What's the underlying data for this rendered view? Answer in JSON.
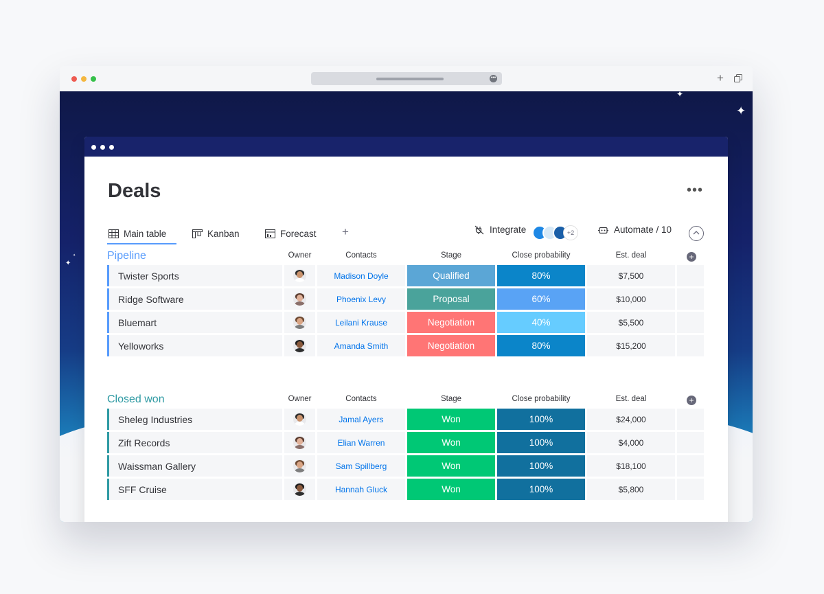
{
  "board": {
    "title": "Deals",
    "more_label": "•••"
  },
  "tabs": [
    {
      "label": "Main table",
      "icon": "table-icon"
    },
    {
      "label": "Kanban",
      "icon": "kanban-icon"
    },
    {
      "label": "Forecast",
      "icon": "forecast-icon"
    }
  ],
  "add_view_label": "+",
  "toolbar": {
    "integrate_label": "Integrate",
    "integrate_extra": "+2",
    "automate_label": "Automate / 10"
  },
  "columns": {
    "owner": "Owner",
    "contacts": "Contacts",
    "stage": "Stage",
    "probability": "Close probability",
    "deal": "Est. deal"
  },
  "groups": [
    {
      "title": "Pipeline",
      "color": "#579bfc",
      "rows": [
        {
          "name": "Twister Sports",
          "contact": "Madison Doyle",
          "stage": "Qualified",
          "stage_color": "#5ba6d6",
          "prob": "80%",
          "prob_color": "#0b85c9",
          "deal": "$7,500",
          "avatar": {
            "skin": "#c9926c",
            "hair": "#2b2b2b",
            "shirt": "#ffffff"
          }
        },
        {
          "name": "Ridge Software",
          "contact": "Phoenix Levy",
          "stage": "Proposal",
          "stage_color": "#4aa39b",
          "prob": "60%",
          "prob_color": "#59a3f5",
          "deal": "$10,000",
          "avatar": {
            "skin": "#e0b199",
            "hair": "#5a3b2e",
            "shirt": "#8a6f6a"
          }
        },
        {
          "name": "Bluemart",
          "contact": "Leilani Krause",
          "stage": "Negotiation",
          "stage_color": "#ff7575",
          "prob": "40%",
          "prob_color": "#66ccff",
          "deal": "$5,500",
          "avatar": {
            "skin": "#d9a585",
            "hair": "#6e4a32",
            "shirt": "#7d7d7d"
          }
        },
        {
          "name": "Yelloworks",
          "contact": "Amanda Smith",
          "stage": "Negotiation",
          "stage_color": "#ff7575",
          "prob": "80%",
          "prob_color": "#0b85c9",
          "deal": "$15,200",
          "avatar": {
            "skin": "#8a5a3d",
            "hair": "#1e1e1e",
            "shirt": "#2e2e2e"
          }
        }
      ]
    },
    {
      "title": "Closed won",
      "color": "#2f9aa3",
      "rows": [
        {
          "name": "Sheleg Industries",
          "contact": "Jamal Ayers",
          "stage": "Won",
          "stage_color": "#00c875",
          "prob": "100%",
          "prob_color": "#11709e",
          "deal": "$24,000",
          "avatar": {
            "skin": "#c9926c",
            "hair": "#2b2b2b",
            "shirt": "#ffffff"
          }
        },
        {
          "name": "Zift Records",
          "contact": "Elian Warren",
          "stage": "Won",
          "stage_color": "#00c875",
          "prob": "100%",
          "prob_color": "#11709e",
          "deal": "$4,000",
          "avatar": {
            "skin": "#e0b199",
            "hair": "#5a3b2e",
            "shirt": "#8a6f6a"
          }
        },
        {
          "name": "Waissman Gallery",
          "contact": "Sam Spillberg",
          "stage": "Won",
          "stage_color": "#00c875",
          "prob": "100%",
          "prob_color": "#11709e",
          "deal": "$18,100",
          "avatar": {
            "skin": "#d9a585",
            "hair": "#6e4a32",
            "shirt": "#7d7d7d"
          }
        },
        {
          "name": "SFF Cruise",
          "contact": "Hannah Gluck",
          "stage": "Won",
          "stage_color": "#00c875",
          "prob": "100%",
          "prob_color": "#11709e",
          "deal": "$5,800",
          "avatar": {
            "skin": "#8a5a3d",
            "hair": "#1e1e1e",
            "shirt": "#2e2e2e"
          }
        }
      ]
    }
  ]
}
